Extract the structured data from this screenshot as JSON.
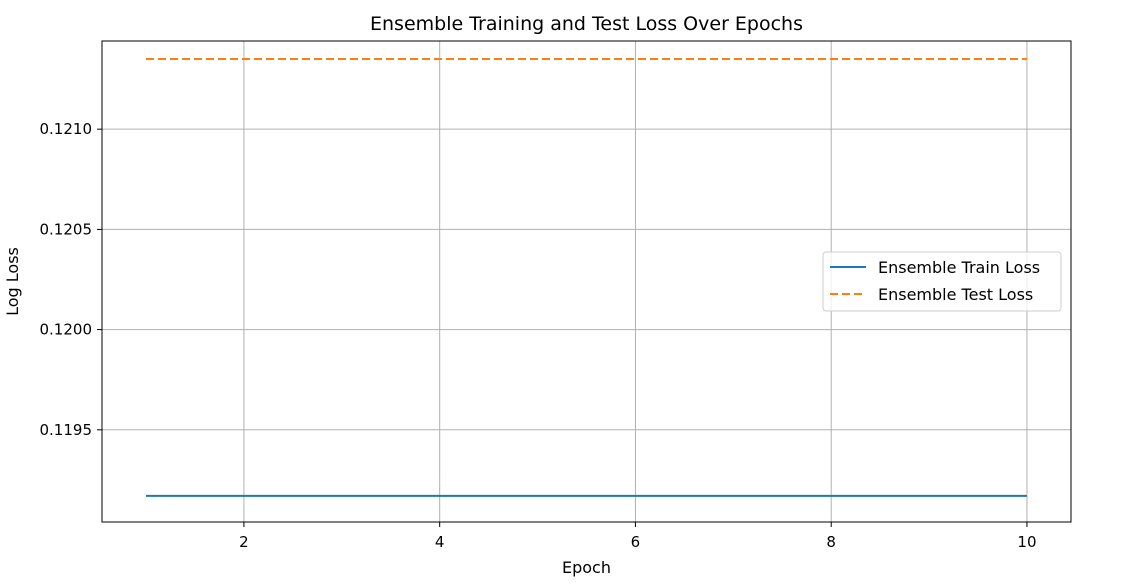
{
  "chart_data": {
    "type": "line",
    "title": "Ensemble Training and Test Loss Over Epochs",
    "xlabel": "Epoch",
    "ylabel": "Log Loss",
    "xlim": [
      0.55,
      10.45
    ],
    "ylim": [
      0.11904,
      0.12144
    ],
    "xticks": [
      2,
      4,
      6,
      8,
      10
    ],
    "yticks": [
      0.1195,
      0.12,
      0.1205,
      0.121
    ],
    "ytick_labels": [
      "0.1195",
      "0.1200",
      "0.1205",
      "0.1210"
    ],
    "grid": true,
    "legend_position": "center-right",
    "x": [
      1,
      2,
      3,
      4,
      5,
      6,
      7,
      8,
      9,
      10
    ],
    "series": [
      {
        "name": "Ensemble Train Loss",
        "values": [
          0.11917,
          0.11917,
          0.11917,
          0.11917,
          0.11917,
          0.11917,
          0.11917,
          0.11917,
          0.11917,
          0.11917
        ],
        "color": "#1f77b4",
        "linestyle": "solid"
      },
      {
        "name": "Ensemble Test Loss",
        "values": [
          0.12135,
          0.12135,
          0.12135,
          0.12135,
          0.12135,
          0.12135,
          0.12135,
          0.12135,
          0.12135,
          0.12135
        ],
        "color": "#ff7f0e",
        "linestyle": "dashed"
      }
    ]
  }
}
